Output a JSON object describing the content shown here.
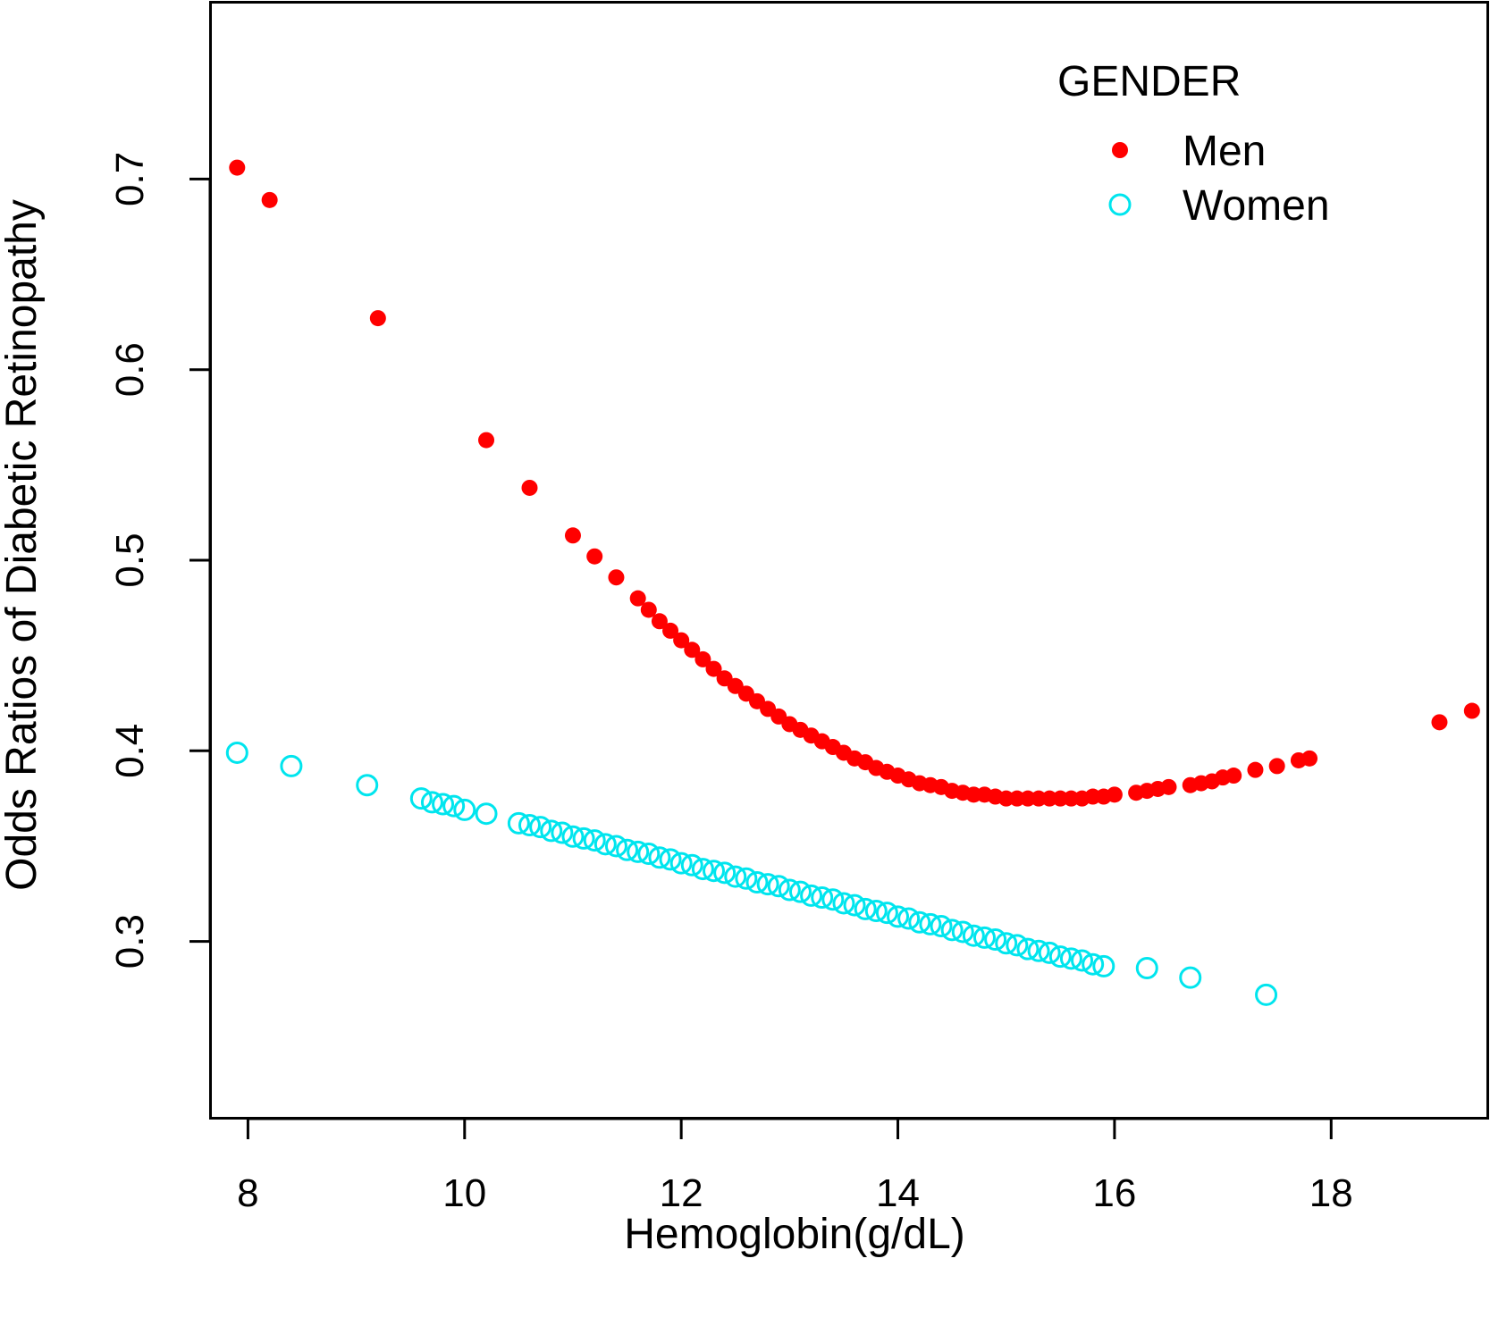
{
  "chart_data": {
    "type": "scatter",
    "title": "",
    "xlabel": "Hemoglobin(g/dL)",
    "ylabel": "Odds Ratios of Diabetic Retinopathy",
    "xlim": [
      7.65,
      19.45
    ],
    "ylim": [
      0.207,
      0.793
    ],
    "x_ticks": [
      8,
      10,
      12,
      14,
      16,
      18
    ],
    "x_tick_labels": [
      "8",
      "10",
      "12",
      "14",
      "16",
      "18"
    ],
    "y_ticks": [
      0.3,
      0.4,
      0.5,
      0.6,
      0.7
    ],
    "y_tick_labels": [
      "0.3",
      "0.4",
      "0.5",
      "0.6",
      "0.7"
    ],
    "grid": false,
    "legend": {
      "title": "GENDER",
      "position": "top-right",
      "entries": [
        {
          "label": "Men",
          "marker": "filled-circle",
          "color": "#ff0000"
        },
        {
          "label": "Women",
          "marker": "open-circle",
          "color": "#00e5ee"
        }
      ]
    },
    "series": [
      {
        "name": "Men",
        "color": "#ff0000",
        "marker": "filled-circle",
        "x": [
          7.9,
          8.2,
          9.2,
          10.2,
          10.6,
          11.0,
          11.2,
          11.4,
          11.6,
          11.7,
          11.8,
          11.9,
          12.0,
          12.1,
          12.2,
          12.3,
          12.4,
          12.5,
          12.6,
          12.7,
          12.8,
          12.9,
          13.0,
          13.1,
          13.2,
          13.3,
          13.4,
          13.5,
          13.6,
          13.7,
          13.8,
          13.9,
          14.0,
          14.1,
          14.2,
          14.3,
          14.4,
          14.5,
          14.6,
          14.7,
          14.8,
          14.9,
          15.0,
          15.1,
          15.2,
          15.3,
          15.4,
          15.5,
          15.6,
          15.7,
          15.8,
          15.9,
          16.0,
          16.2,
          16.3,
          16.4,
          16.5,
          16.7,
          16.8,
          16.9,
          17.0,
          17.1,
          17.3,
          17.5,
          17.7,
          17.8,
          19.0,
          19.3
        ],
        "y": [
          0.706,
          0.689,
          0.627,
          0.563,
          0.538,
          0.513,
          0.502,
          0.491,
          0.48,
          0.474,
          0.468,
          0.463,
          0.458,
          0.453,
          0.448,
          0.443,
          0.438,
          0.434,
          0.43,
          0.426,
          0.422,
          0.418,
          0.414,
          0.411,
          0.408,
          0.405,
          0.402,
          0.399,
          0.396,
          0.394,
          0.391,
          0.389,
          0.387,
          0.385,
          0.383,
          0.382,
          0.381,
          0.379,
          0.378,
          0.377,
          0.377,
          0.376,
          0.375,
          0.375,
          0.375,
          0.375,
          0.375,
          0.375,
          0.375,
          0.375,
          0.376,
          0.376,
          0.377,
          0.378,
          0.379,
          0.38,
          0.381,
          0.382,
          0.383,
          0.384,
          0.386,
          0.387,
          0.39,
          0.392,
          0.395,
          0.396,
          0.415,
          0.421
        ]
      },
      {
        "name": "Women",
        "color": "#00e5ee",
        "marker": "open-circle",
        "x": [
          7.9,
          8.4,
          9.1,
          9.6,
          9.7,
          9.8,
          9.9,
          10.0,
          10.2,
          10.5,
          10.6,
          10.7,
          10.8,
          10.9,
          11.0,
          11.1,
          11.2,
          11.3,
          11.4,
          11.5,
          11.6,
          11.7,
          11.8,
          11.9,
          12.0,
          12.1,
          12.2,
          12.3,
          12.4,
          12.5,
          12.6,
          12.7,
          12.8,
          12.9,
          13.0,
          13.1,
          13.2,
          13.3,
          13.4,
          13.5,
          13.6,
          13.7,
          13.8,
          13.9,
          14.0,
          14.1,
          14.2,
          14.3,
          14.4,
          14.5,
          14.6,
          14.7,
          14.8,
          14.9,
          15.0,
          15.1,
          15.2,
          15.3,
          15.4,
          15.5,
          15.6,
          15.7,
          15.8,
          15.9,
          16.3,
          16.7,
          17.4
        ],
        "y": [
          0.399,
          0.392,
          0.382,
          0.375,
          0.373,
          0.372,
          0.371,
          0.369,
          0.367,
          0.362,
          0.361,
          0.36,
          0.358,
          0.357,
          0.355,
          0.354,
          0.353,
          0.351,
          0.35,
          0.348,
          0.347,
          0.346,
          0.344,
          0.343,
          0.341,
          0.34,
          0.338,
          0.337,
          0.336,
          0.334,
          0.333,
          0.331,
          0.33,
          0.329,
          0.327,
          0.326,
          0.324,
          0.323,
          0.322,
          0.32,
          0.319,
          0.317,
          0.316,
          0.315,
          0.313,
          0.312,
          0.31,
          0.309,
          0.308,
          0.306,
          0.305,
          0.303,
          0.302,
          0.301,
          0.299,
          0.298,
          0.296,
          0.295,
          0.294,
          0.292,
          0.291,
          0.29,
          0.288,
          0.287,
          0.286,
          0.281,
          0.272
        ]
      }
    ]
  }
}
